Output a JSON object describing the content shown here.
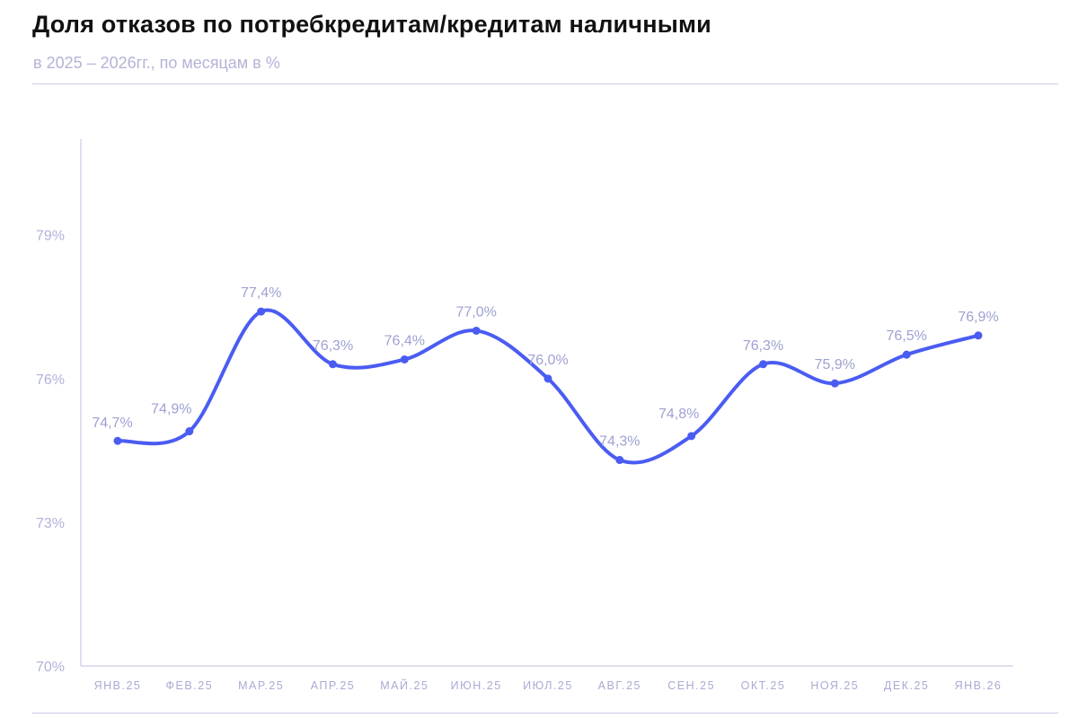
{
  "header": {
    "title": "Доля отказов по потребкредитам/кредитам наличными",
    "subtitle": "в 2025 – 2026гг., по месяцам в %"
  },
  "colors": {
    "line": "#4a5cf2",
    "axis": "#c9cbe6",
    "labels": "#a9abd3"
  },
  "chart_data": {
    "type": "line",
    "categories": [
      "ЯНВ.25",
      "ФЕВ.25",
      "МАР.25",
      "АПР.25",
      "МАЙ.25",
      "ИЮН.25",
      "ИЮЛ.25",
      "АВГ.25",
      "СЕН.25",
      "ОКТ.25",
      "НОЯ.25",
      "ДЕК.25",
      "ЯНВ.26"
    ],
    "series": [
      {
        "values": [
          74.7,
          74.9,
          77.4,
          76.3,
          76.4,
          77.0,
          76.0,
          74.3,
          74.8,
          76.3,
          75.9,
          76.5,
          76.9
        ],
        "labels": [
          "74,7%",
          "74,9%",
          "77,4%",
          "76,3%",
          "76,4%",
          "77,0%",
          "76,0%",
          "74,3%",
          "74,8%",
          "76,3%",
          "75,9%",
          "76,5%",
          "76,9%"
        ]
      }
    ],
    "yticks": [
      70,
      73,
      76,
      79
    ],
    "ytick_labels": [
      "70%",
      "73%",
      "76%",
      "79%"
    ],
    "ylim": [
      70,
      81
    ],
    "grid": false,
    "legend": "none"
  }
}
